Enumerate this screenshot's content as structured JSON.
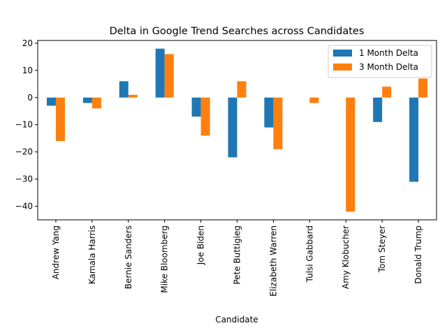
{
  "chart_data": {
    "type": "bar",
    "title": "Delta in Google Trend Searches across Candidates",
    "xlabel": "Candidate",
    "ylabel": "",
    "categories": [
      "Andrew Yang",
      "Kamala Harris",
      "Bernie Sanders",
      "Mike Bloomberg",
      "Joe Biden",
      "Pete Buttigieg",
      "Elizabeth Warren",
      "Tulsi Gabbard",
      "Amy Klobucher",
      "Tom Steyer",
      "Donald Trump"
    ],
    "series": [
      {
        "name": "1 Month Delta",
        "color": "#1f77b4",
        "values": [
          -3,
          -2,
          6,
          18,
          -7,
          -22,
          -11,
          0,
          0,
          -9,
          -31
        ]
      },
      {
        "name": "3 Month Delta",
        "color": "#ff7f0e",
        "values": [
          -16,
          -4,
          1,
          16,
          -14,
          6,
          -19,
          -2,
          -42,
          4,
          7
        ]
      }
    ],
    "ylim": [
      -45,
      21
    ],
    "yticks": [
      20,
      10,
      0,
      -10,
      -20,
      -30,
      -40
    ],
    "grid": false,
    "legend_position": "top-right"
  }
}
